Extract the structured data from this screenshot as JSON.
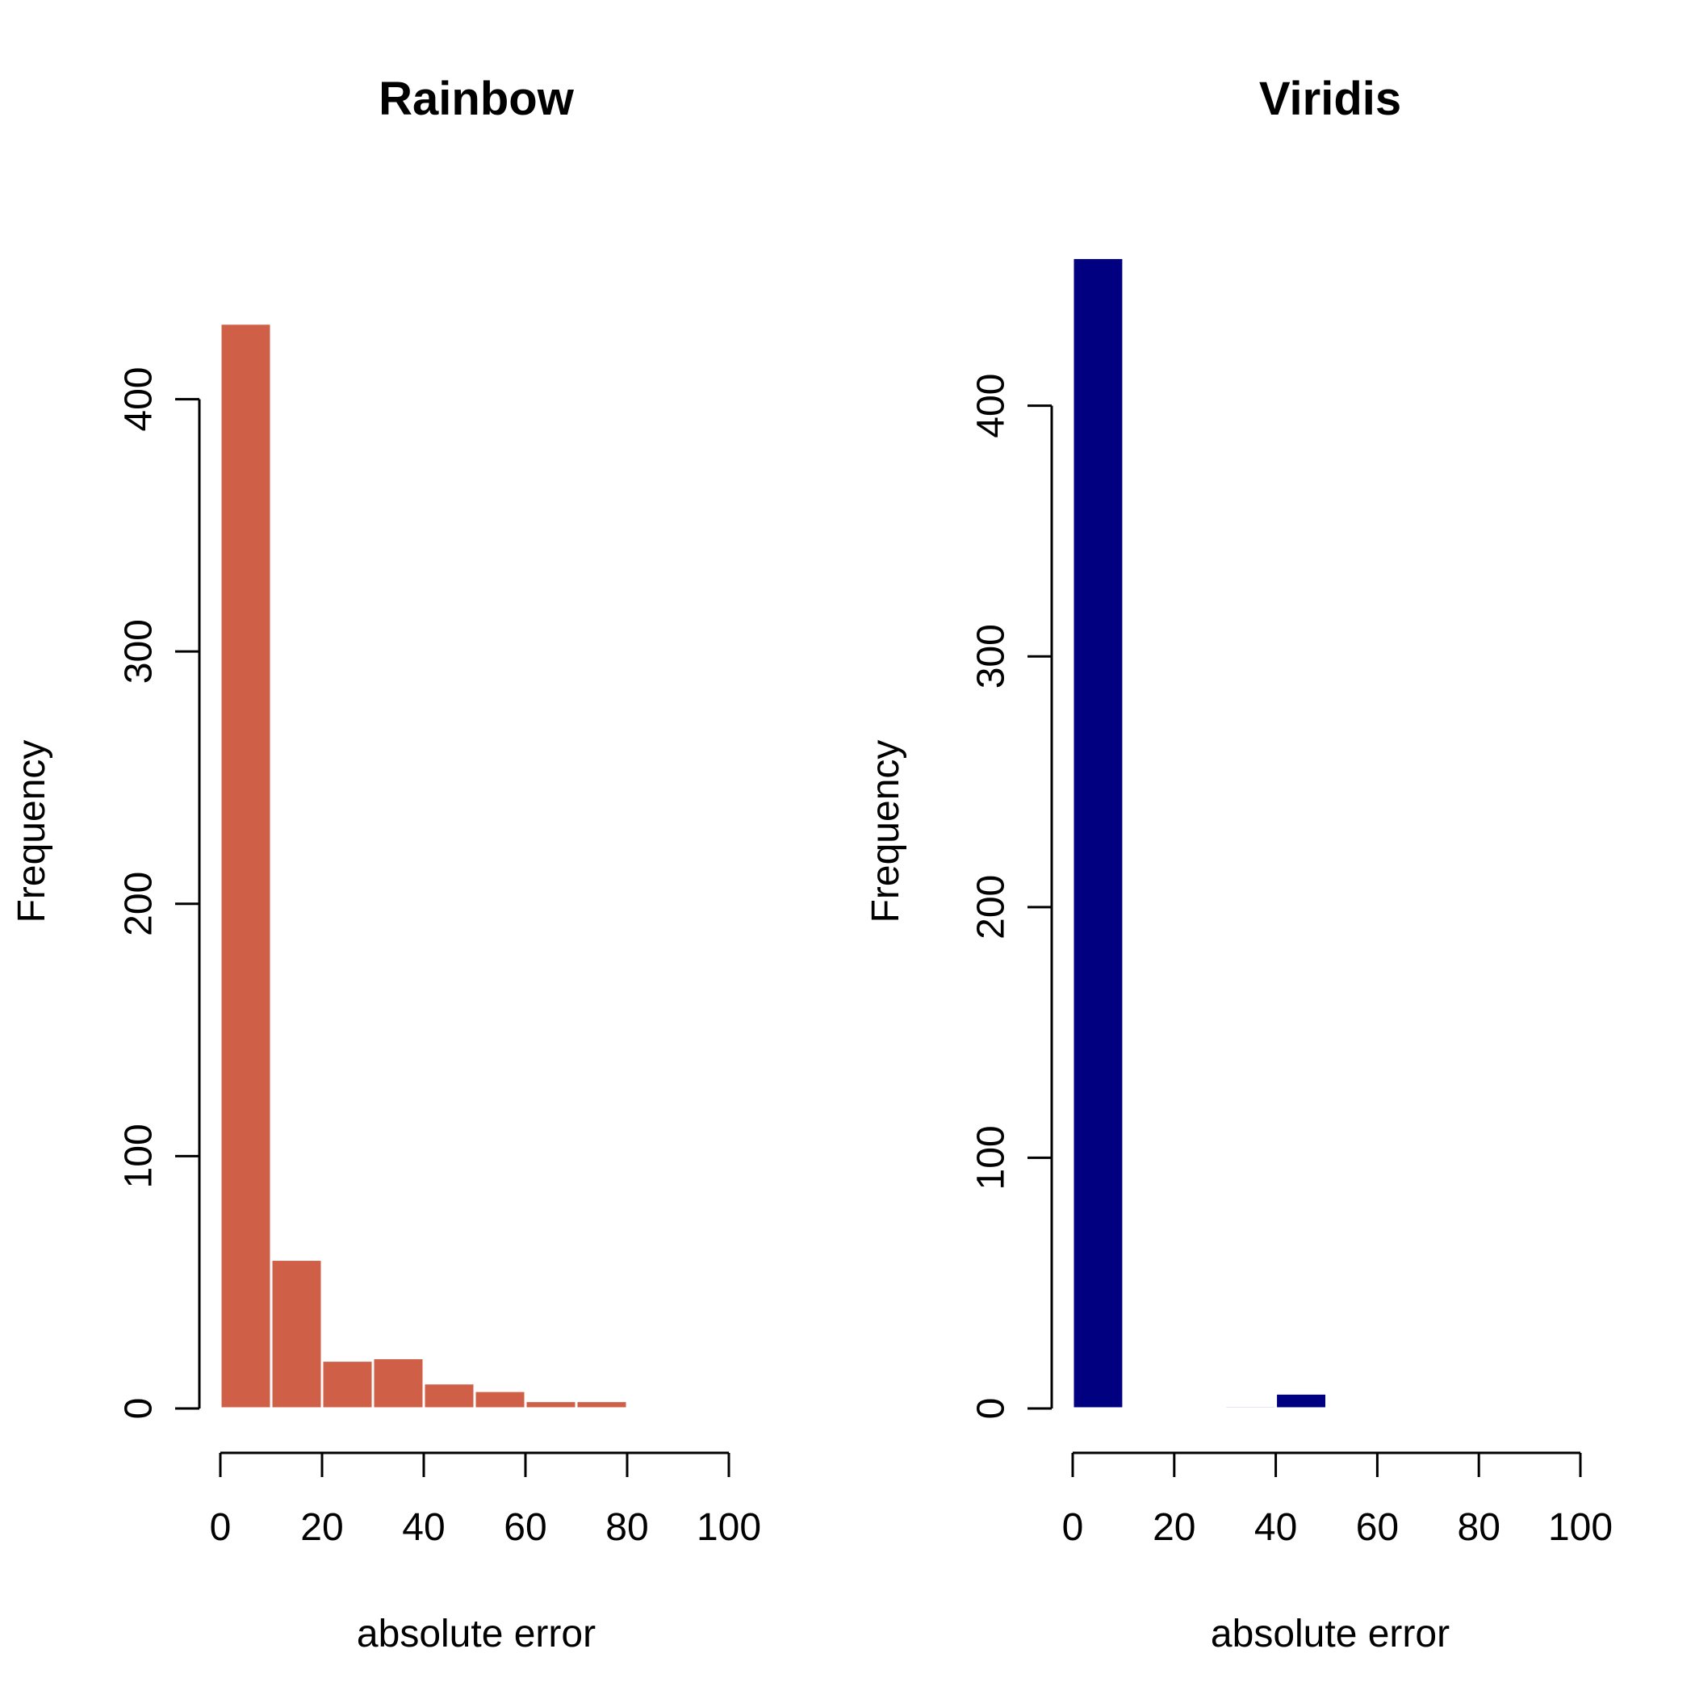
{
  "chart_data": [
    {
      "type": "bar",
      "title": "Rainbow",
      "xlabel": "absolute error",
      "ylabel": "Frequency",
      "bin_edges": [
        0,
        10,
        20,
        30,
        40,
        50,
        60,
        70,
        80
      ],
      "values": [
        430,
        59,
        19,
        20,
        10,
        7,
        3,
        3
      ],
      "xlim": [
        0,
        100
      ],
      "xticks": [
        0,
        20,
        40,
        60,
        80,
        100
      ],
      "yticks": [
        0,
        100,
        200,
        300,
        400
      ],
      "bar_color": "#D05F48",
      "grid": false
    },
    {
      "type": "bar",
      "title": "Viridis",
      "xlabel": "absolute error",
      "ylabel": "Frequency",
      "bin_edges": [
        0,
        10,
        20,
        30,
        40,
        50
      ],
      "values": [
        459,
        0,
        0,
        1,
        6
      ],
      "xlim": [
        0,
        100
      ],
      "xticks": [
        0,
        20,
        40,
        60,
        80,
        100
      ],
      "yticks": [
        0,
        100,
        200,
        300,
        400
      ],
      "bar_color": "#000080",
      "grid": false
    }
  ]
}
